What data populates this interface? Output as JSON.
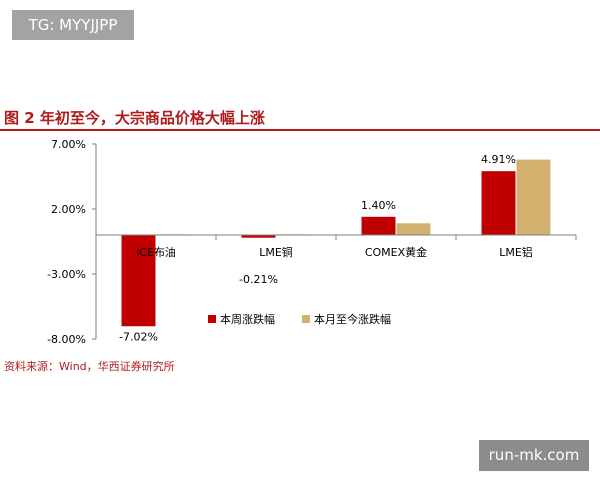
{
  "watermarks": {
    "top_left": "TG: MYYJJPP",
    "bottom_right": "run-mk.com"
  },
  "figure": {
    "title": "图 2  年初至今，大宗商品价格大幅上涨",
    "source": "资料来源：Wind，华西证券研究所"
  },
  "chart_data": {
    "type": "bar",
    "categories": [
      "ICE布油",
      "LME铜",
      "COMEX黄金",
      "LME铝"
    ],
    "series": [
      {
        "name": "本周涨跌幅",
        "color": "#c00000",
        "values": [
          -7.02,
          -0.21,
          1.4,
          4.91
        ]
      },
      {
        "name": "本月至今涨跌幅",
        "color": "#d4b06e",
        "values": [
          0.05,
          0.05,
          0.9,
          5.8
        ]
      }
    ],
    "data_labels": [
      "-7.02%",
      "-0.21%",
      "1.40%",
      "4.91%"
    ],
    "y_ticks": [
      7,
      2,
      -3,
      -8
    ],
    "y_tick_labels": [
      "7.00%",
      "2.00%",
      "-3.00%",
      "-8.00%"
    ],
    "ylim": [
      -8,
      7
    ],
    "grid": false,
    "legend_position": "bottom-right"
  }
}
